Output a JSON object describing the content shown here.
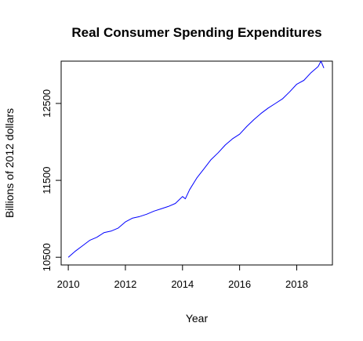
{
  "chart_data": {
    "type": "line",
    "title": "Real Consumer Spending Expenditures",
    "xlabel": "Year",
    "ylabel": "Billions of 2012 dollars",
    "xlim": [
      2009.75,
      2019.25
    ],
    "ylim": [
      10400,
      13050
    ],
    "xticks": [
      2010,
      2012,
      2014,
      2016,
      2018
    ],
    "yticks": [
      10500,
      11500,
      12500
    ],
    "grid": false,
    "legend": "none",
    "line_color": "#0000ff",
    "series": [
      {
        "x": [
          2010.0,
          2010.25,
          2010.5,
          2010.75,
          2011.0,
          2011.25,
          2011.5,
          2011.75,
          2012.0,
          2012.25,
          2012.5,
          2012.75,
          2013.0,
          2013.25,
          2013.5,
          2013.75,
          2014.0,
          2014.1,
          2014.25,
          2014.5,
          2014.75,
          2015.0,
          2015.25,
          2015.5,
          2015.75,
          2016.0,
          2016.25,
          2016.5,
          2016.75,
          2017.0,
          2017.25,
          2017.5,
          2017.75,
          2018.0,
          2018.25,
          2018.5,
          2018.75,
          2018.85,
          2018.95
        ],
        "y": [
          10500,
          10580,
          10650,
          10720,
          10760,
          10820,
          10840,
          10880,
          10960,
          11010,
          11030,
          11060,
          11100,
          11130,
          11160,
          11200,
          11290,
          11260,
          11380,
          11530,
          11650,
          11770,
          11860,
          11960,
          12040,
          12100,
          12200,
          12290,
          12370,
          12440,
          12500,
          12560,
          12650,
          12750,
          12800,
          12900,
          12980,
          13050,
          12960
        ]
      }
    ]
  }
}
